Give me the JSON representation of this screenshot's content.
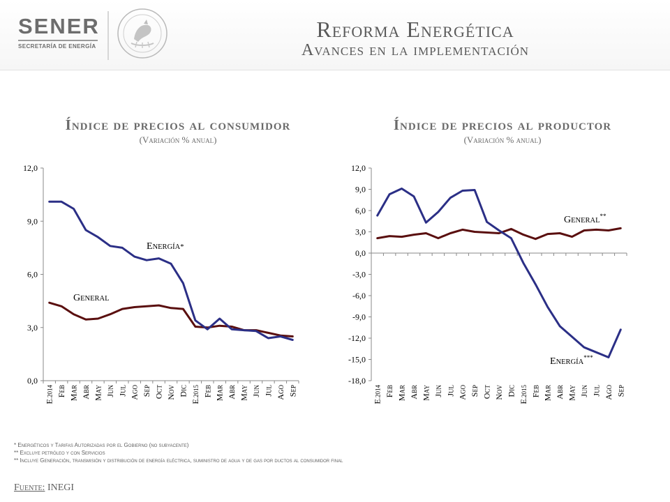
{
  "header": {
    "logo_text": "SENER",
    "logo_subtext": "SECRETARÍA DE ENERGÍA",
    "seal_icon": "mexican-coat-of-arms-icon",
    "title": "Reforma Energética",
    "subtitle": "Avances en la implementación"
  },
  "colors": {
    "energia": "#2b2f86",
    "general": "#5a0f0f"
  },
  "chart_data": [
    {
      "type": "line",
      "title": "Índice de precios al consumidor",
      "subtitle": "(Variación % anual)",
      "categories": [
        "E.2014",
        "Feb",
        "Mar",
        "Abr",
        "May",
        "Jun",
        "Jul",
        "Ago",
        "Sep",
        "Oct",
        "Nov",
        "Dic",
        "E.2015",
        "Feb",
        "Mar",
        "Abr",
        "May",
        "Jun",
        "Jul",
        "Ago",
        "Sep"
      ],
      "ylim": [
        0,
        12
      ],
      "yticks": [
        "0,0",
        "3,0",
        "6,0",
        "9,0",
        "12,0"
      ],
      "grid": false,
      "series": [
        {
          "name": "Energía*",
          "color": "#2b2f86",
          "values": [
            10.1,
            10.1,
            9.7,
            8.5,
            8.1,
            7.6,
            7.5,
            7.0,
            6.8,
            6.9,
            6.6,
            5.5,
            3.4,
            2.9,
            3.5,
            2.9,
            2.85,
            2.8,
            2.4,
            2.5,
            2.3
          ]
        },
        {
          "name": "General",
          "color": "#5a0f0f",
          "values": [
            4.4,
            4.2,
            3.75,
            3.45,
            3.5,
            3.75,
            4.05,
            4.15,
            4.2,
            4.25,
            4.1,
            4.05,
            3.05,
            3.0,
            3.1,
            3.05,
            2.85,
            2.85,
            2.7,
            2.55,
            2.5
          ]
        }
      ]
    },
    {
      "type": "line",
      "title": "Índice de precios al productor",
      "subtitle": "(Variación % anual)",
      "categories": [
        "E.2014",
        "Feb",
        "Mar",
        "Abr",
        "May",
        "Jun",
        "Jul",
        "Ago",
        "Sep",
        "Oct",
        "Nov",
        "Dic",
        "E.2015",
        "Feb",
        "Mar",
        "Abr",
        "May",
        "Jun",
        "Jul",
        "Ago",
        "Sep"
      ],
      "ylim": [
        -18,
        12
      ],
      "yticks": [
        "-18,0",
        "-15,0",
        "-12,0",
        "-9,0",
        "-6,0",
        "-3,0",
        "0,0",
        "3,0",
        "6,0",
        "9,0",
        "12,0"
      ],
      "grid": false,
      "series": [
        {
          "name": "Energía",
          "name_mark": "***",
          "color": "#2b2f86",
          "values": [
            5.3,
            8.3,
            9.1,
            8.0,
            4.3,
            5.8,
            7.8,
            8.8,
            8.9,
            4.4,
            3.2,
            2.1,
            -1.4,
            -4.4,
            -7.6,
            -10.3,
            -11.8,
            -13.3,
            -14.0,
            -14.7,
            -10.8
          ]
        },
        {
          "name": "General",
          "name_mark": "**",
          "color": "#5a0f0f",
          "values": [
            2.1,
            2.4,
            2.3,
            2.6,
            2.8,
            2.1,
            2.8,
            3.3,
            3.0,
            2.9,
            2.8,
            3.4,
            2.6,
            2.0,
            2.7,
            2.8,
            2.3,
            3.2,
            3.3,
            3.2,
            3.5
          ]
        }
      ]
    }
  ],
  "footnotes": [
    "* Energéticos y Tarifas Autorizadas por el Gobierno (no subyacente)",
    "** Excluye petróleo y con Servicios",
    "** Incluye Generación, transmisión y distribución de energía eléctrica, suministro de agua y de gas por ductos al consumidor final"
  ],
  "source": {
    "label": "Fuente:",
    "value": "INEGI"
  }
}
